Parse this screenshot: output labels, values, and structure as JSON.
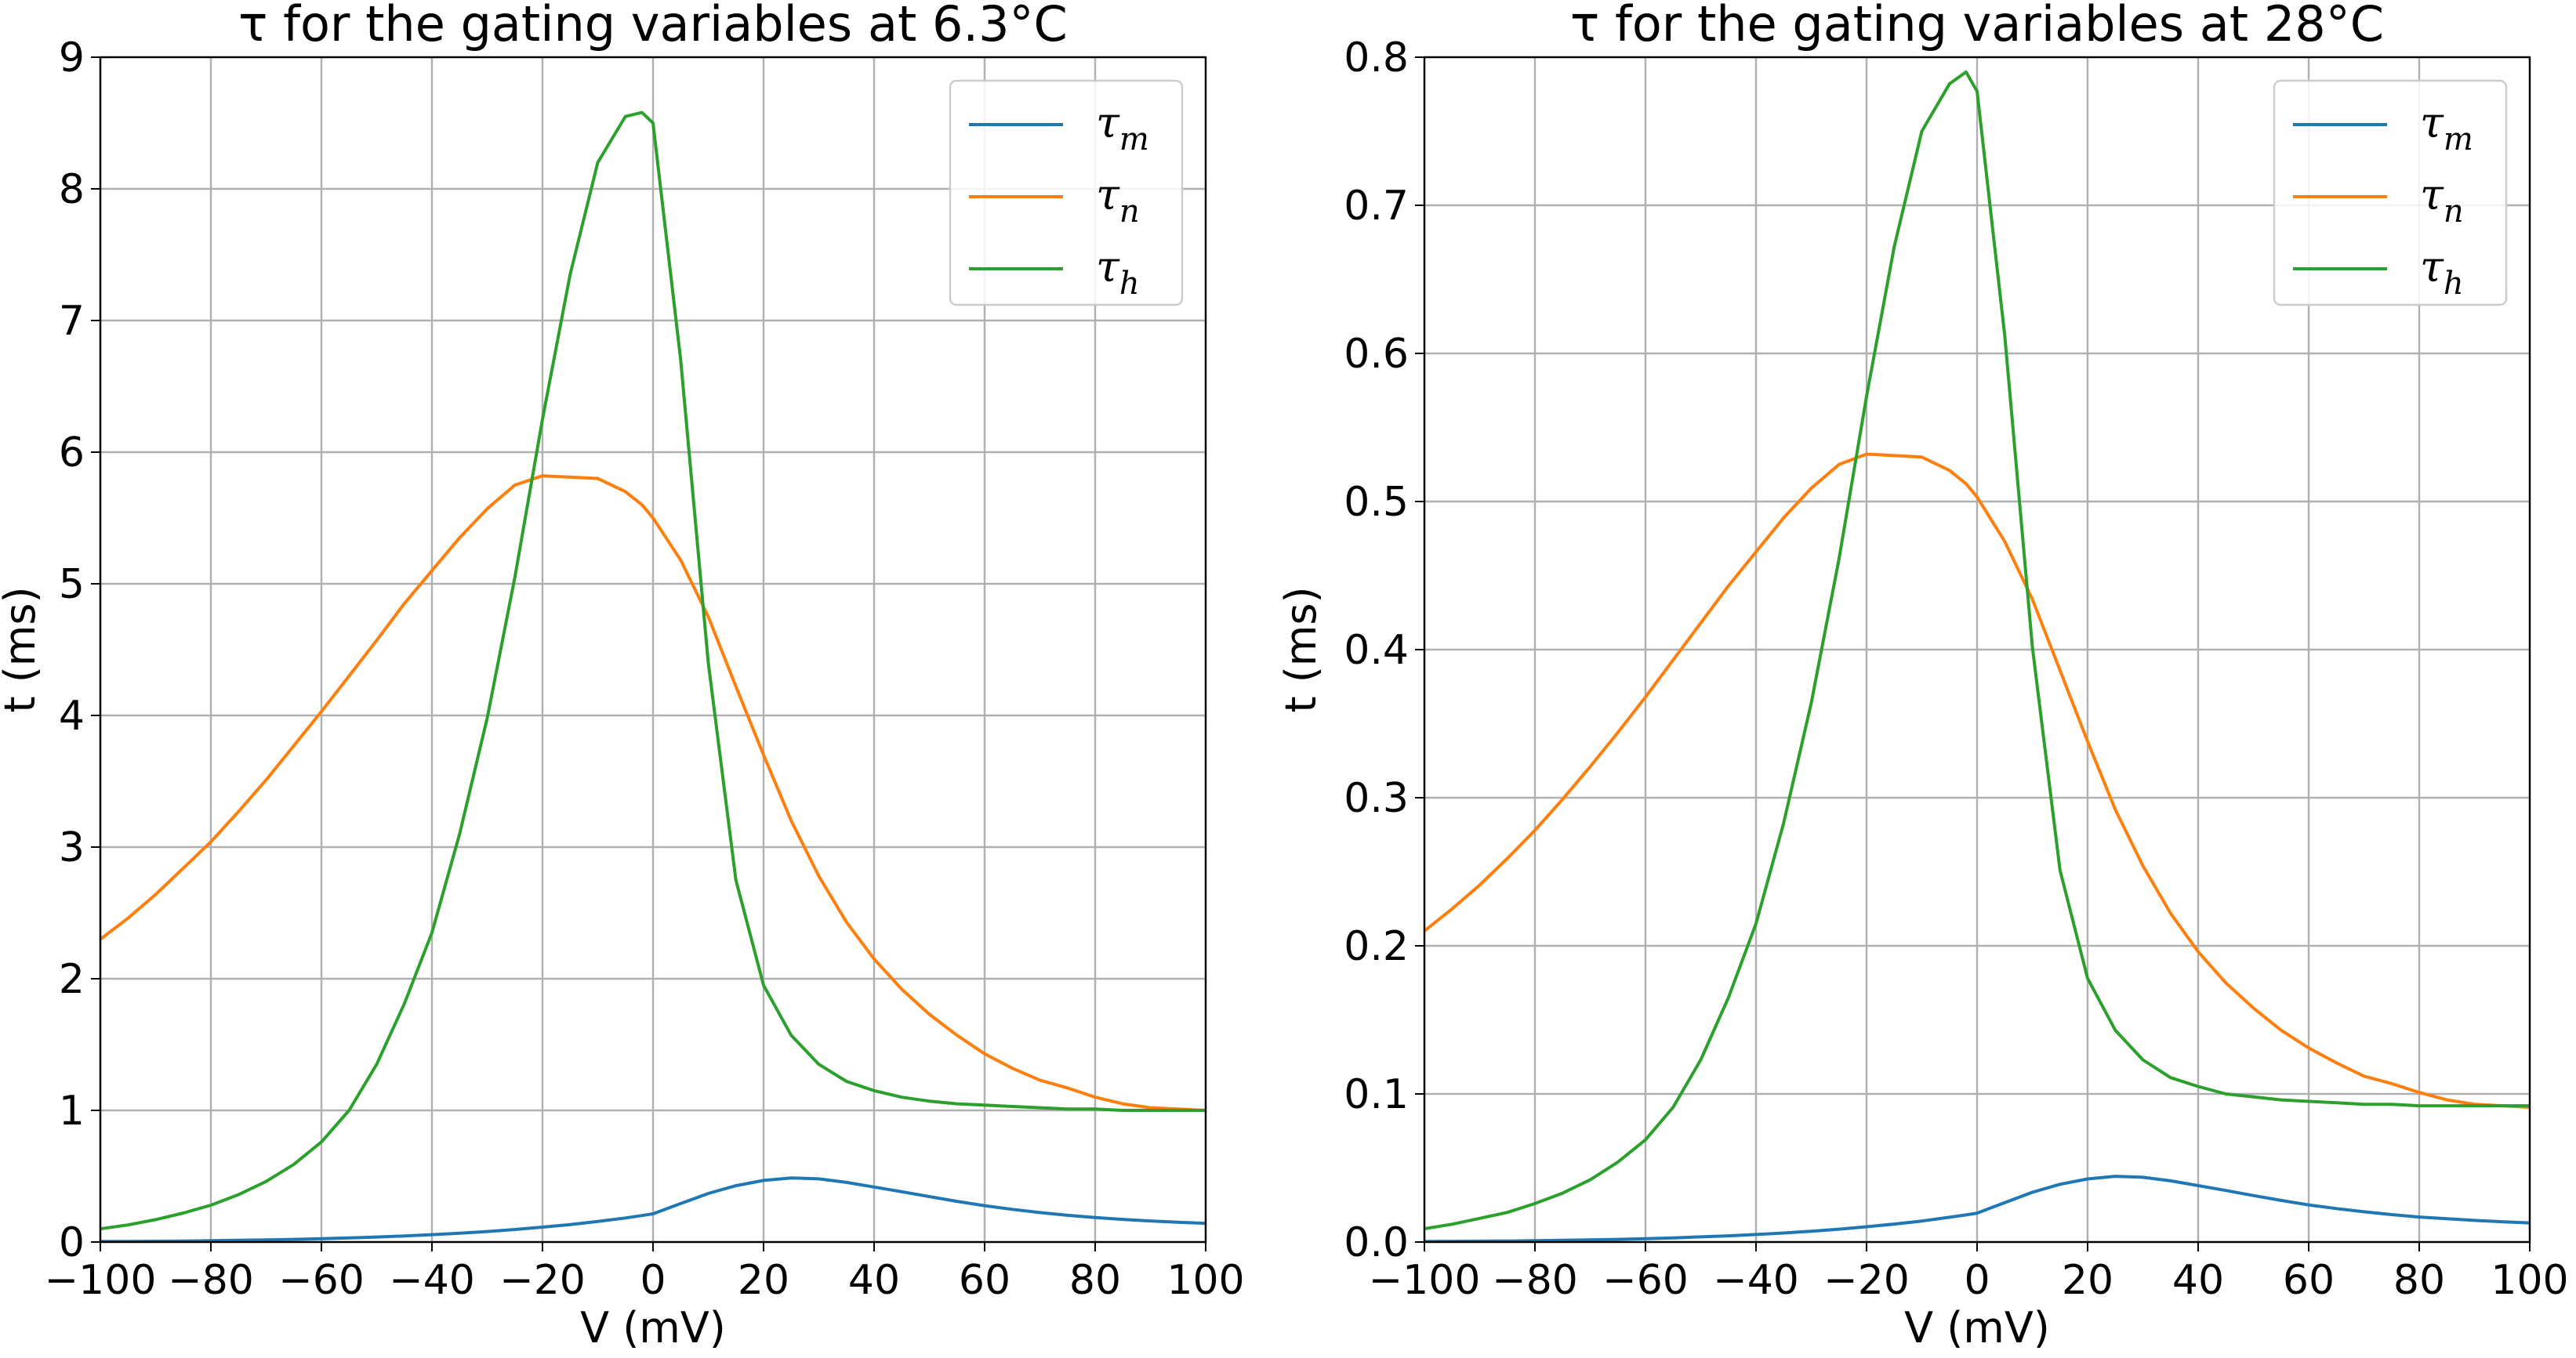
{
  "chart_data": [
    {
      "type": "line",
      "title": "τ for the gating variables at 6.3°C",
      "xlabel": "V (mV)",
      "ylabel": "t (ms)",
      "xlim": [
        -100,
        100
      ],
      "ylim": [
        0,
        9
      ],
      "xticks": [
        "−100",
        "−80",
        "−60",
        "−40",
        "−20",
        "0",
        "20",
        "40",
        "60",
        "80",
        "100"
      ],
      "yticks": [
        "0",
        "1",
        "2",
        "3",
        "4",
        "5",
        "6",
        "7",
        "8",
        "9"
      ],
      "grid": true,
      "legend_position": "top-right",
      "x": [
        -100,
        -95,
        -90,
        -85,
        -80,
        -75,
        -70,
        -65,
        -60,
        -55,
        -50,
        -45,
        -40,
        -35,
        -30,
        -25,
        -20,
        -15,
        -10,
        -5,
        -2,
        0,
        5,
        10,
        15,
        20,
        25,
        30,
        35,
        40,
        45,
        50,
        55,
        60,
        65,
        70,
        75,
        80,
        85,
        90,
        95,
        100
      ],
      "series": [
        {
          "name": "τm",
          "color": "#1f77b4",
          "values": [
            0.004,
            0.005,
            0.006,
            0.008,
            0.01,
            0.013,
            0.016,
            0.02,
            0.025,
            0.031,
            0.038,
            0.046,
            0.056,
            0.067,
            0.08,
            0.095,
            0.113,
            0.133,
            0.156,
            0.183,
            0.201,
            0.214,
            0.292,
            0.369,
            0.428,
            0.468,
            0.487,
            0.48,
            0.453,
            0.418,
            0.382,
            0.345,
            0.309,
            0.276,
            0.248,
            0.224,
            0.203,
            0.186,
            0.172,
            0.16,
            0.15,
            0.142
          ]
        },
        {
          "name": "τn",
          "color": "#ff7f0e",
          "values": [
            2.3,
            2.46,
            2.64,
            2.84,
            3.04,
            3.27,
            3.51,
            3.77,
            4.03,
            4.3,
            4.57,
            4.85,
            5.1,
            5.35,
            5.57,
            5.75,
            5.82,
            5.81,
            5.8,
            5.7,
            5.6,
            5.5,
            5.18,
            4.75,
            4.22,
            3.7,
            3.2,
            2.78,
            2.43,
            2.15,
            1.92,
            1.73,
            1.57,
            1.43,
            1.32,
            1.23,
            1.17,
            1.1,
            1.05,
            1.02,
            1.01,
            1.0
          ]
        },
        {
          "name": "τh",
          "color": "#2ca02c",
          "values": [
            0.1,
            0.13,
            0.17,
            0.22,
            0.28,
            0.36,
            0.46,
            0.59,
            0.76,
            1.0,
            1.35,
            1.81,
            2.35,
            3.1,
            3.98,
            5.05,
            6.25,
            7.35,
            8.2,
            8.55,
            8.58,
            8.5,
            6.7,
            4.4,
            2.75,
            1.95,
            1.57,
            1.35,
            1.22,
            1.15,
            1.1,
            1.07,
            1.05,
            1.04,
            1.03,
            1.02,
            1.01,
            1.01,
            1.0,
            1.0,
            1.0,
            1.0
          ]
        }
      ]
    },
    {
      "type": "line",
      "title": "τ for the gating variables at 28°C",
      "xlabel": "V (mV)",
      "ylabel": "t (ms)",
      "xlim": [
        -100,
        100
      ],
      "ylim": [
        0,
        0.8
      ],
      "xticks": [
        "−100",
        "−80",
        "−60",
        "−40",
        "−20",
        "0",
        "20",
        "40",
        "60",
        "80",
        "100"
      ],
      "yticks": [
        "0.0",
        "0.1",
        "0.2",
        "0.3",
        "0.4",
        "0.5",
        "0.6",
        "0.7",
        "0.8"
      ],
      "grid": true,
      "legend_position": "top-right",
      "x": [
        -100,
        -95,
        -90,
        -85,
        -80,
        -75,
        -70,
        -65,
        -60,
        -55,
        -50,
        -45,
        -40,
        -35,
        -30,
        -25,
        -20,
        -15,
        -10,
        -5,
        -2,
        0,
        5,
        10,
        15,
        20,
        25,
        30,
        35,
        40,
        45,
        50,
        55,
        60,
        65,
        70,
        75,
        80,
        85,
        90,
        95,
        100
      ],
      "series": [
        {
          "name": "τm",
          "color": "#1f77b4",
          "values": [
            0.0004,
            0.0005,
            0.0006,
            0.0007,
            0.0009,
            0.0012,
            0.0015,
            0.0018,
            0.0023,
            0.0028,
            0.0035,
            0.0042,
            0.0051,
            0.0061,
            0.0073,
            0.0087,
            0.0103,
            0.0121,
            0.0142,
            0.0167,
            0.0183,
            0.0195,
            0.0266,
            0.0336,
            0.039,
            0.0426,
            0.0444,
            0.0437,
            0.0413,
            0.0381,
            0.0348,
            0.0314,
            0.0281,
            0.0251,
            0.0226,
            0.0204,
            0.0185,
            0.0169,
            0.0157,
            0.0146,
            0.0137,
            0.0129
          ]
        },
        {
          "name": "τn",
          "color": "#ff7f0e",
          "values": [
            0.21,
            0.225,
            0.241,
            0.259,
            0.278,
            0.299,
            0.321,
            0.344,
            0.368,
            0.393,
            0.418,
            0.443,
            0.466,
            0.489,
            0.509,
            0.525,
            0.532,
            0.531,
            0.53,
            0.521,
            0.512,
            0.503,
            0.473,
            0.434,
            0.386,
            0.338,
            0.292,
            0.254,
            0.222,
            0.196,
            0.175,
            0.158,
            0.143,
            0.131,
            0.121,
            0.112,
            0.107,
            0.101,
            0.096,
            0.093,
            0.092,
            0.091
          ]
        },
        {
          "name": "τh",
          "color": "#2ca02c",
          "values": [
            0.009,
            0.012,
            0.016,
            0.02,
            0.026,
            0.033,
            0.042,
            0.054,
            0.069,
            0.091,
            0.123,
            0.165,
            0.215,
            0.283,
            0.364,
            0.461,
            0.571,
            0.672,
            0.75,
            0.782,
            0.79,
            0.777,
            0.612,
            0.402,
            0.251,
            0.178,
            0.143,
            0.123,
            0.111,
            0.105,
            0.1,
            0.098,
            0.096,
            0.095,
            0.094,
            0.093,
            0.093,
            0.092,
            0.092,
            0.092,
            0.092,
            0.092
          ]
        }
      ]
    }
  ]
}
